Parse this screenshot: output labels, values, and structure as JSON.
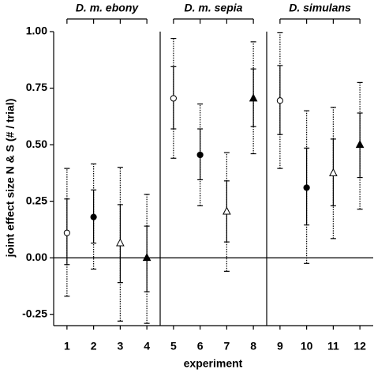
{
  "chart_data": {
    "type": "errorbar",
    "xlabel": "experiment",
    "ylabel": "joint effect size N & S (# / trial)",
    "x": [
      1,
      2,
      3,
      4,
      5,
      6,
      7,
      8,
      9,
      10,
      11,
      12
    ],
    "values": [
      0.11,
      0.18,
      0.065,
      0.0,
      0.705,
      0.455,
      0.205,
      0.705,
      0.695,
      0.31,
      0.375,
      0.5
    ],
    "inner_lower": [
      -0.03,
      0.065,
      -0.11,
      -0.15,
      0.57,
      0.345,
      0.07,
      0.58,
      0.545,
      0.145,
      0.23,
      0.355
    ],
    "inner_upper": [
      0.26,
      0.3,
      0.235,
      0.14,
      0.845,
      0.57,
      0.34,
      0.835,
      0.85,
      0.485,
      0.525,
      0.64
    ],
    "outer_lower": [
      -0.17,
      -0.05,
      -0.28,
      -0.29,
      0.44,
      0.23,
      -0.06,
      0.46,
      0.395,
      -0.025,
      0.085,
      0.215
    ],
    "outer_upper": [
      0.395,
      0.415,
      0.4,
      0.28,
      0.97,
      0.68,
      0.465,
      0.955,
      0.995,
      0.65,
      0.665,
      0.775
    ],
    "markers": [
      "open-circle",
      "filled-circle",
      "open-triangle",
      "filled-triangle",
      "open-circle",
      "filled-circle",
      "open-triangle",
      "filled-triangle",
      "open-circle",
      "filled-circle",
      "open-triangle",
      "filled-triangle"
    ],
    "color": "#000000",
    "groups": [
      {
        "label": "D. m. ebony",
        "from": 1,
        "to": 4
      },
      {
        "label": "D. m. sepia",
        "from": 5,
        "to": 8
      },
      {
        "label": "D. simulans",
        "from": 9,
        "to": 12
      }
    ],
    "hline": 0,
    "xlim": [
      0.5,
      12.5
    ],
    "xticks": [
      1,
      2,
      3,
      4,
      5,
      6,
      7,
      8,
      9,
      10,
      11,
      12
    ],
    "ylim": [
      -0.3,
      1.0
    ],
    "yticks": [
      {
        "value": -0.25,
        "label": "-0.25"
      },
      {
        "value": 0,
        "label": "0.00"
      },
      {
        "value": 0.25,
        "label": "0.25"
      },
      {
        "value": 0.5,
        "label": "0.50"
      },
      {
        "value": 0.75,
        "label": "0.75"
      },
      {
        "value": 1.0,
        "label": "1.00"
      }
    ]
  }
}
